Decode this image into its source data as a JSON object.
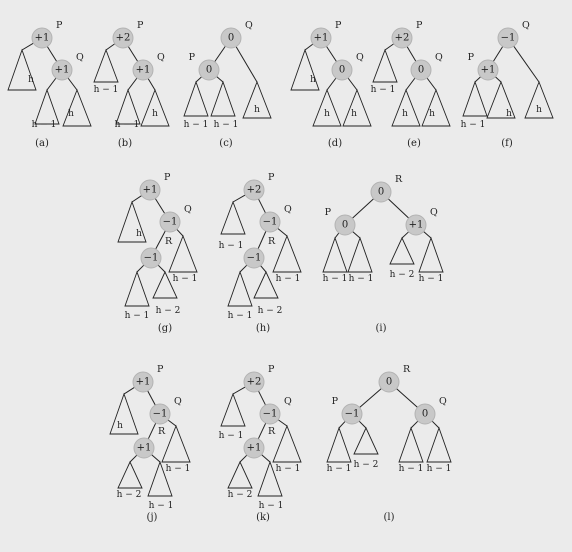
{
  "colors": {
    "background": "#ebebeb",
    "node_fill": "#c8c8c8",
    "node_stroke": "#b3b3b3",
    "line": "#222222"
  },
  "diagrams": [
    {
      "caption": "(a)",
      "nodes": [
        {
          "id": "P",
          "bal": "+1",
          "name": "P"
        },
        {
          "id": "Q",
          "bal": "+1",
          "name": "Q"
        }
      ],
      "edges": [
        [
          "P",
          "t1"
        ],
        [
          "P",
          "Q"
        ],
        [
          "Q",
          "t2"
        ],
        [
          "Q",
          "t3"
        ]
      ],
      "subtrees": [
        {
          "id": "t1",
          "label": "h"
        },
        {
          "id": "t2",
          "label": "h − 1"
        },
        {
          "id": "t3",
          "label": "h"
        }
      ]
    },
    {
      "caption": "(b)",
      "nodes": [
        {
          "id": "P",
          "bal": "+2",
          "name": "P"
        },
        {
          "id": "Q",
          "bal": "+1",
          "name": "Q"
        }
      ],
      "edges": [
        [
          "P",
          "t1"
        ],
        [
          "P",
          "Q"
        ],
        [
          "Q",
          "t2"
        ],
        [
          "Q",
          "t3"
        ]
      ],
      "subtrees": [
        {
          "id": "t1",
          "label": "h − 1"
        },
        {
          "id": "t2",
          "label": "h − 1"
        },
        {
          "id": "t3",
          "label": "h"
        }
      ]
    },
    {
      "caption": "(c)",
      "nodes": [
        {
          "id": "Q",
          "bal": "0",
          "name": "Q"
        },
        {
          "id": "P",
          "bal": "0",
          "name": "P"
        }
      ],
      "edges": [
        [
          "Q",
          "P"
        ],
        [
          "Q",
          "t3"
        ],
        [
          "P",
          "t1"
        ],
        [
          "P",
          "t2"
        ]
      ],
      "subtrees": [
        {
          "id": "t1",
          "label": "h − 1"
        },
        {
          "id": "t2",
          "label": "h − 1"
        },
        {
          "id": "t3",
          "label": "h"
        }
      ]
    },
    {
      "caption": "(d)",
      "nodes": [
        {
          "id": "P",
          "bal": "+1",
          "name": "P"
        },
        {
          "id": "Q",
          "bal": "0",
          "name": "Q"
        }
      ],
      "edges": [
        [
          "P",
          "t1"
        ],
        [
          "P",
          "Q"
        ],
        [
          "Q",
          "t2"
        ],
        [
          "Q",
          "t3"
        ]
      ],
      "subtrees": [
        {
          "id": "t1",
          "label": "h"
        },
        {
          "id": "t2",
          "label": "h"
        },
        {
          "id": "t3",
          "label": "h"
        }
      ]
    },
    {
      "caption": "(e)",
      "nodes": [
        {
          "id": "P",
          "bal": "+2",
          "name": "P"
        },
        {
          "id": "Q",
          "bal": "0",
          "name": "Q"
        }
      ],
      "edges": [
        [
          "P",
          "t1"
        ],
        [
          "P",
          "Q"
        ],
        [
          "Q",
          "t2"
        ],
        [
          "Q",
          "t3"
        ]
      ],
      "subtrees": [
        {
          "id": "t1",
          "label": "h − 1"
        },
        {
          "id": "t2",
          "label": "h"
        },
        {
          "id": "t3",
          "label": "h"
        }
      ]
    },
    {
      "caption": "(f)",
      "nodes": [
        {
          "id": "Q",
          "bal": "−1",
          "name": "Q"
        },
        {
          "id": "P",
          "bal": "+1",
          "name": "P"
        }
      ],
      "edges": [
        [
          "Q",
          "P"
        ],
        [
          "Q",
          "t3"
        ],
        [
          "P",
          "t1"
        ],
        [
          "P",
          "t2"
        ]
      ],
      "subtrees": [
        {
          "id": "t1",
          "label": "h − 1"
        },
        {
          "id": "t2",
          "label": "h"
        },
        {
          "id": "t3",
          "label": "h"
        }
      ]
    },
    {
      "caption": "(g)",
      "nodes": [
        {
          "id": "P",
          "bal": "+1",
          "name": "P"
        },
        {
          "id": "Q",
          "bal": "−1",
          "name": "Q"
        },
        {
          "id": "R",
          "bal": "−1",
          "name": "R"
        }
      ],
      "edges": [
        [
          "P",
          "t1"
        ],
        [
          "P",
          "Q"
        ],
        [
          "Q",
          "R"
        ],
        [
          "Q",
          "t4"
        ],
        [
          "R",
          "t2"
        ],
        [
          "R",
          "t3"
        ]
      ],
      "subtrees": [
        {
          "id": "t1",
          "label": "h"
        },
        {
          "id": "t2",
          "label": "h − 1"
        },
        {
          "id": "t3",
          "label": "h − 2"
        },
        {
          "id": "t4",
          "label": "h − 1"
        }
      ]
    },
    {
      "caption": "(h)",
      "nodes": [
        {
          "id": "P",
          "bal": "+2",
          "name": "P"
        },
        {
          "id": "Q",
          "bal": "−1",
          "name": "Q"
        },
        {
          "id": "R",
          "bal": "−1",
          "name": "R"
        }
      ],
      "edges": [
        [
          "P",
          "t1"
        ],
        [
          "P",
          "Q"
        ],
        [
          "Q",
          "R"
        ],
        [
          "Q",
          "t4"
        ],
        [
          "R",
          "t2"
        ],
        [
          "R",
          "t3"
        ]
      ],
      "subtrees": [
        {
          "id": "t1",
          "label": "h − 1"
        },
        {
          "id": "t2",
          "label": "h − 1"
        },
        {
          "id": "t3",
          "label": "h − 2"
        },
        {
          "id": "t4",
          "label": "h − 1"
        }
      ]
    },
    {
      "caption": "(i)",
      "nodes": [
        {
          "id": "R",
          "bal": "0",
          "name": "R"
        },
        {
          "id": "P",
          "bal": "0",
          "name": "P"
        },
        {
          "id": "Q",
          "bal": "+1",
          "name": "Q"
        }
      ],
      "edges": [
        [
          "R",
          "P"
        ],
        [
          "R",
          "Q"
        ],
        [
          "P",
          "t1"
        ],
        [
          "P",
          "t2"
        ],
        [
          "Q",
          "t3"
        ],
        [
          "Q",
          "t4"
        ]
      ],
      "subtrees": [
        {
          "id": "t1",
          "label": "h − 1"
        },
        {
          "id": "t2",
          "label": "h − 1"
        },
        {
          "id": "t3",
          "label": "h − 2"
        },
        {
          "id": "t4",
          "label": "h − 1"
        }
      ]
    },
    {
      "caption": "(j)",
      "nodes": [
        {
          "id": "P",
          "bal": "+1",
          "name": "P"
        },
        {
          "id": "Q",
          "bal": "−1",
          "name": "Q"
        },
        {
          "id": "R",
          "bal": "+1",
          "name": "R"
        }
      ],
      "edges": [
        [
          "P",
          "t1"
        ],
        [
          "P",
          "Q"
        ],
        [
          "Q",
          "R"
        ],
        [
          "Q",
          "t4"
        ],
        [
          "R",
          "t2"
        ],
        [
          "R",
          "t3"
        ]
      ],
      "subtrees": [
        {
          "id": "t1",
          "label": "h"
        },
        {
          "id": "t2",
          "label": "h − 2"
        },
        {
          "id": "t3",
          "label": "h − 1"
        },
        {
          "id": "t4",
          "label": "h − 1"
        }
      ]
    },
    {
      "caption": "(k)",
      "nodes": [
        {
          "id": "P",
          "bal": "+2",
          "name": "P"
        },
        {
          "id": "Q",
          "bal": "−1",
          "name": "Q"
        },
        {
          "id": "R",
          "bal": "+1",
          "name": "R"
        }
      ],
      "edges": [
        [
          "P",
          "t1"
        ],
        [
          "P",
          "Q"
        ],
        [
          "Q",
          "R"
        ],
        [
          "Q",
          "t4"
        ],
        [
          "R",
          "t2"
        ],
        [
          "R",
          "t3"
        ]
      ],
      "subtrees": [
        {
          "id": "t1",
          "label": "h − 1"
        },
        {
          "id": "t2",
          "label": "h − 2"
        },
        {
          "id": "t3",
          "label": "h − 1"
        },
        {
          "id": "t4",
          "label": "h − 1"
        }
      ]
    },
    {
      "caption": "(l)",
      "nodes": [
        {
          "id": "R",
          "bal": "0",
          "name": "R"
        },
        {
          "id": "P",
          "bal": "−1",
          "name": "P"
        },
        {
          "id": "Q",
          "bal": "0",
          "name": "Q"
        }
      ],
      "edges": [
        [
          "R",
          "P"
        ],
        [
          "R",
          "Q"
        ],
        [
          "P",
          "t1"
        ],
        [
          "P",
          "t2"
        ],
        [
          "Q",
          "t3"
        ],
        [
          "Q",
          "t4"
        ]
      ],
      "subtrees": [
        {
          "id": "t1",
          "label": "h − 1"
        },
        {
          "id": "t2",
          "label": "h − 2"
        },
        {
          "id": "t3",
          "label": "h − 1"
        },
        {
          "id": "t4",
          "label": "h − 1"
        }
      ]
    }
  ]
}
